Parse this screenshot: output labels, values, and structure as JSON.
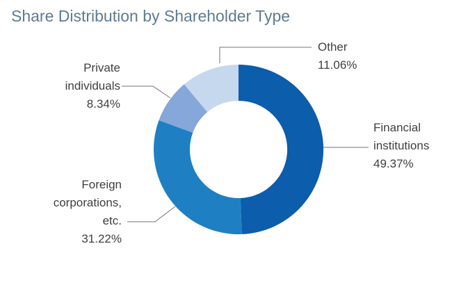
{
  "title": "Share Distribution by Shareholder Type",
  "colors": {
    "background": "#ffffff",
    "title_text": "#5e7b94",
    "label_text": "#3f3f3f",
    "leader_line": "#737373"
  },
  "chart_data": {
    "type": "pie",
    "subtype": "donut",
    "title": "Share Distribution by Shareholder Type",
    "start_angle_deg": 0,
    "direction": "clockwise",
    "inner_radius_ratio": 0.57,
    "legend_position": "none",
    "categories": [
      "Financial institutions",
      "Foreign corporations, etc.",
      "Private individuals",
      "Other"
    ],
    "values": [
      49.37,
      31.22,
      8.34,
      11.06
    ],
    "series": [
      {
        "label": "Financial institutions",
        "value": 49.37,
        "display": "49.37%",
        "color": "#0c5dac"
      },
      {
        "label": "Foreign corporations, etc.",
        "value": 31.22,
        "display": "31.22%",
        "color": "#1e80c3"
      },
      {
        "label": "Private individuals",
        "value": 8.34,
        "display": "8.34%",
        "color": "#85a7d9"
      },
      {
        "label": "Other",
        "value": 11.06,
        "display": "11.06%",
        "color": "#c5d8ed"
      }
    ],
    "labels_display": {
      "financial": {
        "name": "Financial\ninstitutions",
        "pct": "49.37%"
      },
      "foreign": {
        "name": "Foreign\ncorporations,\netc.",
        "pct": "31.22%"
      },
      "private": {
        "name": "Private\nindividuals",
        "pct": "8.34%"
      },
      "other": {
        "name": "Other",
        "pct": "11.06%"
      }
    }
  }
}
